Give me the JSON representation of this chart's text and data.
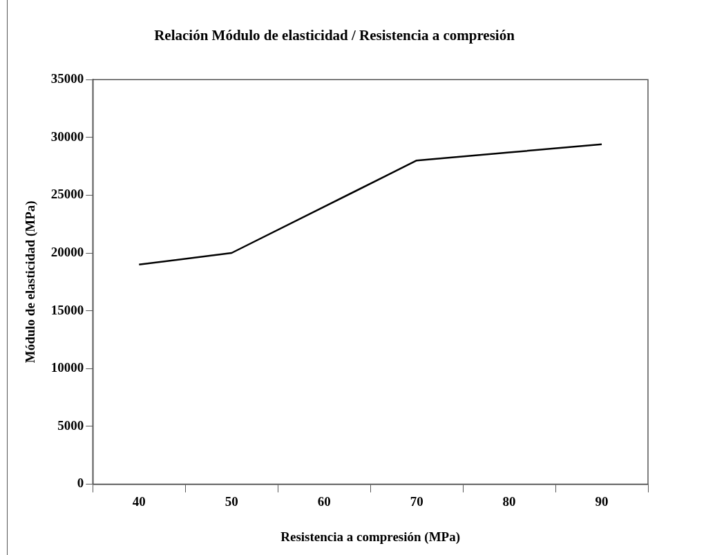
{
  "chart_data": {
    "type": "line",
    "title": "Relación Módulo de elasticidad / Resistencia a compresión",
    "xlabel": "Resistencia a compresión (MPa)",
    "ylabel": "Módulo de elasticidad (MPa)",
    "categories": [
      "40",
      "50",
      "60",
      "70",
      "80",
      "90"
    ],
    "values": [
      19000,
      20000,
      24000,
      28000,
      28700,
      29400
    ],
    "color": "#000000",
    "ylim": [
      0,
      35000
    ],
    "yticks": [
      0,
      5000,
      10000,
      15000,
      20000,
      25000,
      30000,
      35000
    ],
    "grid": false,
    "marker": "none",
    "line_style": "solid",
    "legend": false
  }
}
